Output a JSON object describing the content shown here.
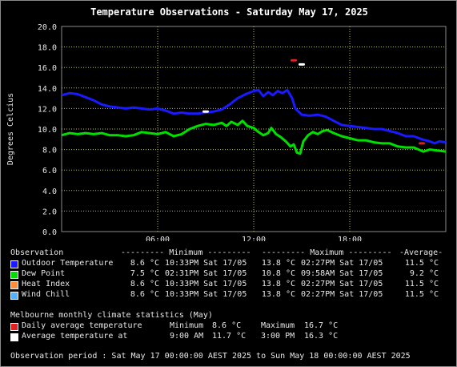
{
  "chart_data": {
    "type": "line",
    "title": "Temperature Observations - Saturday May 17, 2025",
    "ylabel": "Degrees Celcius",
    "xlabel": "",
    "ylim": [
      0,
      20
    ],
    "xlim_hours": [
      0,
      24
    ],
    "y_ticks": [
      "0.0",
      "2.0",
      "4.0",
      "6.0",
      "8.0",
      "10.0",
      "12.0",
      "14.0",
      "16.0",
      "18.0",
      "20.0"
    ],
    "x_ticks": [
      {
        "h": 6,
        "label": "06:00"
      },
      {
        "h": 12,
        "label": "12:00"
      },
      {
        "h": 18,
        "label": "18:00"
      }
    ],
    "grid": true,
    "series": [
      {
        "name": "Outdoor Temperature",
        "color": "#1a1aff",
        "points": [
          [
            0,
            13.3
          ],
          [
            0.5,
            13.5
          ],
          [
            1,
            13.4
          ],
          [
            1.5,
            13.1
          ],
          [
            2,
            12.8
          ],
          [
            2.5,
            12.4
          ],
          [
            3,
            12.2
          ],
          [
            3.5,
            12.1
          ],
          [
            4,
            12.0
          ],
          [
            4.5,
            12.1
          ],
          [
            5,
            12.0
          ],
          [
            5.5,
            11.9
          ],
          [
            6,
            12.0
          ],
          [
            6.5,
            11.8
          ],
          [
            7,
            11.5
          ],
          [
            7.5,
            11.6
          ],
          [
            8,
            11.5
          ],
          [
            8.5,
            11.5
          ],
          [
            9,
            11.6
          ],
          [
            9.5,
            11.7
          ],
          [
            10,
            11.9
          ],
          [
            10.5,
            12.4
          ],
          [
            11,
            13.0
          ],
          [
            11.5,
            13.4
          ],
          [
            12,
            13.7
          ],
          [
            12.3,
            13.8
          ],
          [
            12.6,
            13.2
          ],
          [
            12.9,
            13.6
          ],
          [
            13.2,
            13.3
          ],
          [
            13.5,
            13.7
          ],
          [
            13.8,
            13.5
          ],
          [
            14.1,
            13.8
          ],
          [
            14.4,
            13.0
          ],
          [
            14.6,
            12.0
          ],
          [
            15,
            11.4
          ],
          [
            15.5,
            11.3
          ],
          [
            16,
            11.4
          ],
          [
            16.5,
            11.2
          ],
          [
            17,
            10.8
          ],
          [
            17.5,
            10.4
          ],
          [
            18,
            10.3
          ],
          [
            18.5,
            10.2
          ],
          [
            19,
            10.1
          ],
          [
            19.5,
            10.0
          ],
          [
            20,
            10.0
          ],
          [
            20.5,
            9.8
          ],
          [
            21,
            9.6
          ],
          [
            21.5,
            9.3
          ],
          [
            22,
            9.3
          ],
          [
            22.5,
            9.0
          ],
          [
            23,
            8.8
          ],
          [
            23.3,
            8.6
          ],
          [
            23.6,
            8.8
          ],
          [
            24,
            8.7
          ]
        ]
      },
      {
        "name": "Dew Point",
        "color": "#00e000",
        "points": [
          [
            0,
            9.4
          ],
          [
            0.5,
            9.6
          ],
          [
            1,
            9.5
          ],
          [
            1.5,
            9.6
          ],
          [
            2,
            9.5
          ],
          [
            2.5,
            9.6
          ],
          [
            3,
            9.4
          ],
          [
            3.5,
            9.4
          ],
          [
            4,
            9.3
          ],
          [
            4.5,
            9.4
          ],
          [
            5,
            9.7
          ],
          [
            5.5,
            9.6
          ],
          [
            6,
            9.5
          ],
          [
            6.5,
            9.7
          ],
          [
            7,
            9.3
          ],
          [
            7.5,
            9.5
          ],
          [
            8,
            10.0
          ],
          [
            8.5,
            10.3
          ],
          [
            9,
            10.5
          ],
          [
            9.5,
            10.4
          ],
          [
            10,
            10.6
          ],
          [
            10.3,
            10.3
          ],
          [
            10.6,
            10.7
          ],
          [
            11,
            10.4
          ],
          [
            11.3,
            10.8
          ],
          [
            11.6,
            10.3
          ],
          [
            12,
            10.1
          ],
          [
            12.3,
            9.7
          ],
          [
            12.6,
            9.4
          ],
          [
            12.9,
            9.6
          ],
          [
            13.1,
            10.1
          ],
          [
            13.4,
            9.5
          ],
          [
            13.7,
            9.2
          ],
          [
            14,
            8.8
          ],
          [
            14.3,
            8.3
          ],
          [
            14.5,
            8.5
          ],
          [
            14.7,
            7.7
          ],
          [
            14.9,
            7.6
          ],
          [
            15.1,
            8.8
          ],
          [
            15.4,
            9.4
          ],
          [
            15.7,
            9.7
          ],
          [
            16,
            9.5
          ],
          [
            16.3,
            9.8
          ],
          [
            16.6,
            9.9
          ],
          [
            17,
            9.6
          ],
          [
            17.5,
            9.3
          ],
          [
            18,
            9.1
          ],
          [
            18.5,
            8.9
          ],
          [
            19,
            8.9
          ],
          [
            19.5,
            8.7
          ],
          [
            20,
            8.6
          ],
          [
            20.5,
            8.6
          ],
          [
            21,
            8.3
          ],
          [
            21.5,
            8.2
          ],
          [
            22,
            8.2
          ],
          [
            22.3,
            8.0
          ],
          [
            22.6,
            7.8
          ],
          [
            23,
            8.0
          ],
          [
            23.5,
            7.9
          ],
          [
            24,
            7.8
          ]
        ]
      },
      {
        "name": "Heat Index",
        "color": "#ff8c3a",
        "points": []
      },
      {
        "name": "Wind Chill",
        "color": "#55b0ff",
        "points": []
      }
    ],
    "climate_markers": [
      {
        "name": "Daily average temperature",
        "kind": "max",
        "h": 14.5,
        "v": 16.7,
        "color": "#e02020"
      },
      {
        "name": "Daily average temperature",
        "kind": "min",
        "h": 22.5,
        "v": 8.6,
        "color": "#e02020"
      },
      {
        "name": "Average temperature at",
        "kind": "9am",
        "h": 9.0,
        "v": 11.7,
        "color": "#ffffff"
      },
      {
        "name": "Average temperature at",
        "kind": "3pm",
        "h": 15.0,
        "v": 16.3,
        "color": "#ffffff"
      }
    ]
  },
  "table": {
    "header": {
      "observation": "Observation",
      "minimum": "--------- Minimum ---------",
      "maximum": "--------- Maximum ---------",
      "average": "-Average-"
    },
    "rows": [
      {
        "color": "#1a1aff",
        "name": "Outdoor Temperature",
        "min_val": "8.6 °C",
        "min_time": "10:33PM Sat 17/05",
        "max_val": "13.8 °C",
        "max_time": "02:27PM Sat 17/05",
        "avg": "11.5 °C"
      },
      {
        "color": "#00e000",
        "name": "Dew Point",
        "min_val": "7.5 °C",
        "min_time": "02:31PM Sat 17/05",
        "max_val": "10.8 °C",
        "max_time": "09:58AM Sat 17/05",
        "avg": "9.2 °C"
      },
      {
        "color": "#ff8c3a",
        "name": "Heat Index",
        "min_val": "8.6 °C",
        "min_time": "10:33PM Sat 17/05",
        "max_val": "13.8 °C",
        "max_time": "02:27PM Sat 17/05",
        "avg": "11.5 °C"
      },
      {
        "color": "#55b0ff",
        "name": "Wind Chill",
        "min_val": "8.6 °C",
        "min_time": "10:33PM Sat 17/05",
        "max_val": "13.8 °C",
        "max_time": "02:27PM Sat 17/05",
        "avg": "11.5 °C"
      }
    ]
  },
  "climate": {
    "heading": "Melbourne monthly climate statistics (May)",
    "daily": {
      "color": "#e02020",
      "label": "Daily average temperature",
      "min_label": "Minimum",
      "min_val": "8.6 °C",
      "max_label": "Maximum",
      "max_val": "16.7 °C"
    },
    "at": {
      "color": "#ffffff",
      "label": "Average temperature at",
      "t1": "9:00 AM",
      "v1": "11.7 °C",
      "t2": "3:00 PM",
      "v2": "16.3 °C"
    }
  },
  "footer": "Observation period : Sat May 17 00:00:00 AEST 2025 to Sun May 18 00:00:00 AEST 2025"
}
